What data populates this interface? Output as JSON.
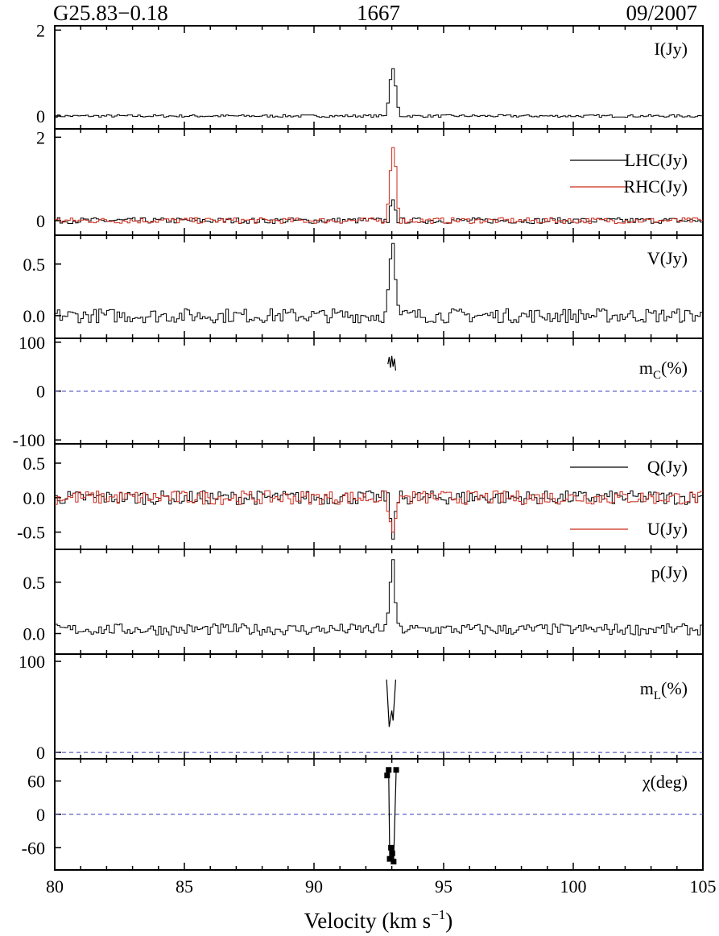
{
  "header": {
    "source": "G25.83−0.18",
    "line": "1667",
    "date": "09/2007"
  },
  "chart_data": {
    "type": "line",
    "xlabel": "Velocity (km s",
    "xlabel_sup": "−1",
    "xlabel_end": ")",
    "xlim": [
      80,
      105
    ],
    "xticks": [
      80,
      85,
      90,
      95,
      100,
      105
    ],
    "xticklabels": [
      "80",
      "85",
      "90",
      "95",
      "100",
      "105"
    ],
    "colors": {
      "black": "#000000",
      "red": "#cc2a1c",
      "zero": "#3a3ab8"
    },
    "panels": [
      {
        "id": "I",
        "ylim": [
          -0.3,
          2.1
        ],
        "yticks": [
          0,
          2
        ],
        "yticklabels": [
          "0",
          "2"
        ],
        "labels": [
          "I(Jy)"
        ],
        "series": [
          {
            "name": "I(Jy)",
            "color": "#000000",
            "noise": 0.03,
            "peak": [
              [
                92.9,
                0.85
              ],
              [
                93.0,
                1.1
              ],
              [
                93.1,
                0.7
              ],
              [
                92.8,
                0.3
              ],
              [
                93.2,
                0.2
              ]
            ]
          }
        ]
      },
      {
        "id": "LR",
        "ylim": [
          -0.35,
          2.2
        ],
        "yticks": [
          0,
          2
        ],
        "yticklabels": [
          "0",
          "2"
        ],
        "labels": [
          "LHC(Jy)",
          "RHC(Jy)"
        ],
        "series": [
          {
            "name": "LHC(Jy)",
            "color": "#000000",
            "noise": 0.07,
            "peak": [
              [
                92.9,
                0.35
              ],
              [
                93.0,
                0.5
              ],
              [
                93.1,
                0.25
              ]
            ]
          },
          {
            "name": "RHC(Jy)",
            "color": "#cc2a1c",
            "noise": 0.07,
            "peak": [
              [
                92.8,
                0.4
              ],
              [
                92.9,
                1.2
              ],
              [
                93.0,
                1.75
              ],
              [
                93.1,
                1.3
              ],
              [
                93.2,
                0.3
              ]
            ]
          }
        ]
      },
      {
        "id": "V",
        "ylim": [
          -0.22,
          0.78
        ],
        "yticks": [
          0.0,
          0.5
        ],
        "yticklabels": [
          "0.0",
          "0.5"
        ],
        "labels": [
          "V(Jy)"
        ],
        "series": [
          {
            "name": "V(Jy)",
            "color": "#000000",
            "noise": 0.07,
            "peak": [
              [
                92.8,
                0.25
              ],
              [
                92.9,
                0.55
              ],
              [
                93.0,
                0.7
              ],
              [
                93.1,
                0.35
              ],
              [
                93.2,
                0.1
              ]
            ]
          }
        ]
      },
      {
        "id": "mc",
        "ylim": [
          -108,
          108
        ],
        "yticks": [
          -100,
          0,
          100
        ],
        "yticklabels": [
          "-100",
          "0",
          "100"
        ],
        "labels": [
          "mC(%)"
        ],
        "zero": true,
        "series": [
          {
            "name": "mC(%)",
            "color": "#000000",
            "points": [
              [
                92.85,
                55
              ],
              [
                92.9,
                70
              ],
              [
                92.95,
                48
              ],
              [
                93.0,
                72
              ],
              [
                93.05,
                50
              ],
              [
                93.1,
                66
              ],
              [
                93.15,
                42
              ]
            ]
          }
        ]
      },
      {
        "id": "QU",
        "ylim": [
          -0.75,
          0.78
        ],
        "yticks": [
          -0.5,
          0.0,
          0.5
        ],
        "yticklabels": [
          "-0.5",
          "0.0",
          "0.5"
        ],
        "labels": [
          "Q(Jy)",
          "U(Jy)"
        ],
        "series": [
          {
            "name": "Q(Jy)",
            "color": "#000000",
            "noise": 0.1,
            "peak": [
              [
                92.9,
                -0.3
              ],
              [
                93.0,
                -0.6
              ],
              [
                93.1,
                -0.2
              ]
            ]
          },
          {
            "name": "U(Jy)",
            "color": "#cc2a1c",
            "noise": 0.1,
            "peak": [
              [
                92.8,
                -0.2
              ],
              [
                92.9,
                -0.35
              ],
              [
                93.0,
                -0.5
              ],
              [
                93.1,
                -0.3
              ]
            ]
          }
        ]
      },
      {
        "id": "p",
        "ylim": [
          -0.2,
          0.82
        ],
        "yticks": [
          0.0,
          0.5
        ],
        "yticklabels": [
          "0.0",
          "0.5"
        ],
        "labels": [
          "p(Jy)"
        ],
        "series": [
          {
            "name": "p(Jy)",
            "color": "#000000",
            "noise": 0.055,
            "offset": 0.04,
            "peak": [
              [
                92.8,
                0.2
              ],
              [
                92.9,
                0.5
              ],
              [
                93.0,
                0.72
              ],
              [
                93.1,
                0.3
              ],
              [
                93.2,
                0.1
              ]
            ]
          }
        ]
      },
      {
        "id": "ml",
        "ylim": [
          -7,
          108
        ],
        "yticks": [
          0,
          100
        ],
        "yticklabels": [
          "0",
          "100"
        ],
        "labels": [
          "mL(%)"
        ],
        "zero": true,
        "series": [
          {
            "name": "mL(%)",
            "color": "#000000",
            "points": [
              [
                92.8,
                80
              ],
              [
                92.9,
                28
              ],
              [
                93.0,
                46
              ],
              [
                93.05,
                35
              ],
              [
                93.15,
                80
              ]
            ]
          }
        ]
      },
      {
        "id": "chi",
        "ylim": [
          -100,
          100
        ],
        "yticks": [
          -60,
          0,
          60
        ],
        "yticklabels": [
          "-60",
          "0",
          "60"
        ],
        "labels": [
          "χ(deg)"
        ],
        "zero": true,
        "series": [
          {
            "name": "χ(deg)",
            "color": "#000000",
            "markers": true,
            "points": [
              [
                92.82,
                70
              ],
              [
                92.88,
                80
              ],
              [
                92.92,
                -80
              ],
              [
                92.97,
                -60
              ],
              [
                93.02,
                -70
              ],
              [
                93.07,
                -85
              ],
              [
                93.17,
                80
              ]
            ]
          }
        ]
      }
    ]
  }
}
